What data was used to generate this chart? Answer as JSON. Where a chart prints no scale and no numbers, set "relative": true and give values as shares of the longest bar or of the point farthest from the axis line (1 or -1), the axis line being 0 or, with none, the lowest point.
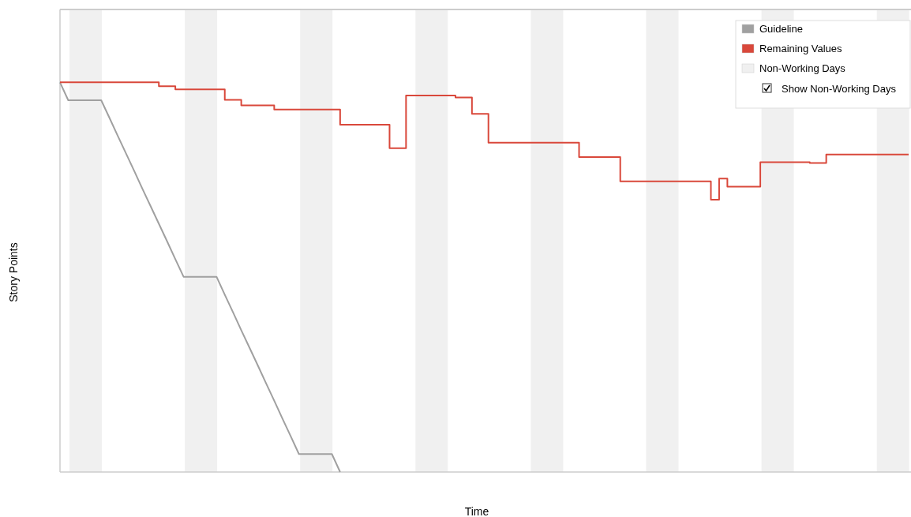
{
  "chart_data": {
    "type": "step",
    "xlabel": "Time",
    "ylabel": "Story Points",
    "relative": true,
    "legend": "top right",
    "marker": "none",
    "line_style": "solid",
    "categories": [
      null,
      null,
      null,
      null,
      null,
      null,
      null,
      null,
      null,
      null,
      null,
      null,
      null,
      null,
      null,
      null,
      null,
      null,
      null,
      null,
      null,
      null,
      null,
      null,
      null,
      null,
      null,
      null,
      null,
      null,
      null,
      null,
      null,
      null,
      null,
      null,
      null,
      null,
      null,
      null,
      null,
      null,
      null,
      null,
      null,
      null,
      null,
      null,
      null,
      null,
      null,
      null,
      null,
      null,
      null,
      null,
      null,
      null,
      null,
      null,
      null,
      null,
      null,
      null,
      null,
      null,
      null,
      null,
      null,
      null,
      null,
      null,
      null,
      null,
      null,
      null,
      null,
      null,
      null,
      null,
      null,
      null,
      null,
      null,
      null,
      null,
      null,
      null,
      null,
      null,
      null,
      null,
      null,
      null,
      null,
      null,
      null,
      null,
      null,
      null,
      null,
      null,
      null,
      null
    ],
    "series": [
      {
        "name": "Guideline",
        "type": "line",
        "color": "#a0a0a0",
        "values": [
          1.0,
          0.954,
          0.954,
          0.954,
          0.954,
          0.954,
          0.909,
          0.863,
          0.818,
          0.773,
          0.727,
          0.682,
          0.637,
          0.592,
          0.546,
          0.501,
          0.501,
          0.501,
          0.501,
          0.501,
          0.455,
          0.41,
          0.364,
          0.319,
          0.274,
          0.228,
          0.183,
          0.137,
          0.092,
          0.046,
          0.046,
          0.046,
          0.046,
          0.046,
          0,
          null,
          null,
          null,
          null,
          null,
          null,
          null,
          null,
          null,
          null,
          null,
          null,
          null,
          null,
          null,
          null,
          null,
          null,
          null,
          null,
          null,
          null,
          null,
          null,
          null,
          null,
          null,
          null,
          null,
          null,
          null,
          null,
          null,
          null,
          null,
          null,
          null,
          null,
          null,
          null,
          null,
          null,
          null,
          null,
          null,
          null,
          null,
          null,
          null,
          null,
          null,
          null,
          null,
          null,
          null,
          null,
          null,
          null,
          null,
          null,
          null,
          null,
          null,
          null,
          null,
          null,
          null,
          null,
          null
        ]
      },
      {
        "name": "Remaining Values",
        "type": "step",
        "color": "#d9483b",
        "values": [
          1.0,
          1.0,
          1.0,
          1.0,
          1.0,
          1.0,
          1.0,
          1.0,
          1.0,
          1.0,
          1.0,
          1.0,
          0.99,
          0.99,
          0.982,
          0.982,
          0.982,
          0.982,
          0.982,
          0.982,
          0.955,
          0.955,
          0.941,
          0.941,
          0.941,
          0.941,
          0.93,
          0.93,
          0.93,
          0.93,
          0.93,
          0.93,
          0.93,
          0.93,
          0.891,
          0.891,
          0.891,
          0.891,
          0.891,
          0.891,
          0.831,
          0.831,
          0.966,
          0.966,
          0.966,
          0.966,
          0.966,
          0.966,
          0.961,
          0.961,
          0.919,
          0.919,
          0.845,
          0.845,
          0.845,
          0.845,
          0.845,
          0.845,
          0.845,
          0.845,
          0.845,
          0.845,
          0.845,
          0.808,
          0.808,
          0.808,
          0.808,
          0.808,
          0.746,
          0.746,
          0.746,
          0.746,
          0.746,
          0.746,
          0.746,
          0.746,
          0.746,
          0.746,
          0.746,
          0.699,
          0.753,
          0.732,
          0.732,
          0.732,
          0.732,
          0.795,
          0.795,
          0.795,
          0.795,
          0.795,
          0.795,
          0.793,
          0.793,
          0.815,
          0.815,
          0.815,
          0.815,
          0.815,
          0.815,
          0.815,
          0.815,
          0.815,
          0.815,
          0.815
        ]
      }
    ],
    "annotations": [
      "Non-Working Days",
      "Show Non-Working Days"
    ]
  }
}
